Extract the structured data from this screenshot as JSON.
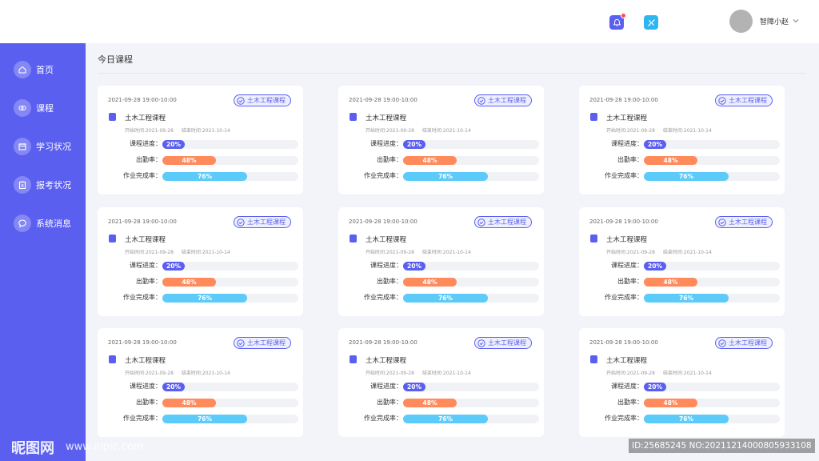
{
  "header": {
    "username": "智障小赵",
    "notification_badge": true,
    "icons": [
      "bell-icon",
      "tool-icon",
      "chevron-down-icon"
    ]
  },
  "sidebar": {
    "items": [
      {
        "label": "首页",
        "icon": "home-icon"
      },
      {
        "label": "课程",
        "icon": "course-icon"
      },
      {
        "label": "学习状况",
        "icon": "calendar-icon"
      },
      {
        "label": "报考状况",
        "icon": "clipboard-icon"
      },
      {
        "label": "系统消息",
        "icon": "message-icon"
      }
    ]
  },
  "main": {
    "section_title": "今日课程",
    "labels": {
      "progress": "课程进度：",
      "attendance": "出勤率：",
      "homework": "作业完成率："
    },
    "cards": [
      {
        "date": "2021-09-28  19:00-10:00",
        "badge": "土木工程课程",
        "title": "土木工程课程",
        "start": "开始时间:2021-09-28",
        "end": "结束时间:2021-10-14",
        "progress": {
          "value": 0.2,
          "text": "20%"
        },
        "attendance": {
          "value": 0.48,
          "text": "48%"
        },
        "homework": {
          "value": 0.76,
          "text": "76%"
        }
      },
      {
        "date": "2021-09-28  19:00-10:00",
        "badge": "土木工程课程",
        "title": "土木工程课程",
        "start": "开始时间:2021-09-28",
        "end": "结束时间:2021-10-14",
        "progress": {
          "value": 0.2,
          "text": "20%"
        },
        "attendance": {
          "value": 0.48,
          "text": "48%"
        },
        "homework": {
          "value": 0.76,
          "text": "76%"
        }
      },
      {
        "date": "2021-09-28  19:00-10:00",
        "badge": "土木工程课程",
        "title": "土木工程课程",
        "start": "开始时间:2021-09-28",
        "end": "结束时间:2021-10-14",
        "progress": {
          "value": 0.2,
          "text": "20%"
        },
        "attendance": {
          "value": 0.48,
          "text": "48%"
        },
        "homework": {
          "value": 0.76,
          "text": "76%"
        }
      },
      {
        "date": "2021-09-28  19:00-10:00",
        "badge": "土木工程课程",
        "title": "土木工程课程",
        "start": "开始时间:2021-09-28",
        "end": "结束时间:2021-10-14",
        "progress": {
          "value": 0.2,
          "text": "20%"
        },
        "attendance": {
          "value": 0.48,
          "text": "48%"
        },
        "homework": {
          "value": 0.76,
          "text": "76%"
        }
      },
      {
        "date": "2021-09-28  19:00-10:00",
        "badge": "土木工程课程",
        "title": "土木工程课程",
        "start": "开始时间:2021-09-28",
        "end": "结束时间:2021-10-14",
        "progress": {
          "value": 0.2,
          "text": "20%"
        },
        "attendance": {
          "value": 0.48,
          "text": "48%"
        },
        "homework": {
          "value": 0.76,
          "text": "76%"
        }
      },
      {
        "date": "2021-09-28  19:00-10:00",
        "badge": "土木工程课程",
        "title": "土木工程课程",
        "start": "开始时间:2021-09-28",
        "end": "结束时间:2021-10-14",
        "progress": {
          "value": 0.2,
          "text": "20%"
        },
        "attendance": {
          "value": 0.48,
          "text": "48%"
        },
        "homework": {
          "value": 0.76,
          "text": "76%"
        }
      },
      {
        "date": "2021-09-28  19:00-10:00",
        "badge": "土木工程课程",
        "title": "土木工程课程",
        "start": "开始时间:2021-09-28",
        "end": "结束时间:2021-10-14",
        "progress": {
          "value": 0.2,
          "text": "20%"
        },
        "attendance": {
          "value": 0.48,
          "text": "48%"
        },
        "homework": {
          "value": 0.76,
          "text": "76%"
        }
      },
      {
        "date": "2021-09-28  19:00-10:00",
        "badge": "土木工程课程",
        "title": "土木工程课程",
        "start": "开始时间:2021-09-28",
        "end": "结束时间:2021-10-14",
        "progress": {
          "value": 0.2,
          "text": "20%"
        },
        "attendance": {
          "value": 0.48,
          "text": "48%"
        },
        "homework": {
          "value": 0.76,
          "text": "76%"
        }
      },
      {
        "date": "2021-09-28  19:00-10:00",
        "badge": "土木工程课程",
        "title": "土木工程课程",
        "start": "开始时间:2021-09-28",
        "end": "结束时间:2021-10-14",
        "progress": {
          "value": 0.2,
          "text": "20%"
        },
        "attendance": {
          "value": 0.48,
          "text": "48%"
        },
        "homework": {
          "value": 0.76,
          "text": "76%"
        }
      }
    ]
  },
  "colors": {
    "accent": "#5b5ff0",
    "progress": "#5b5ff0",
    "attendance": "#ff8a5c",
    "homework": "#5ccbfa"
  },
  "watermark": {
    "left": "昵图网",
    "url": "www.nipic.com",
    "right": "ID:25685245 NO:20211214000805933108"
  }
}
